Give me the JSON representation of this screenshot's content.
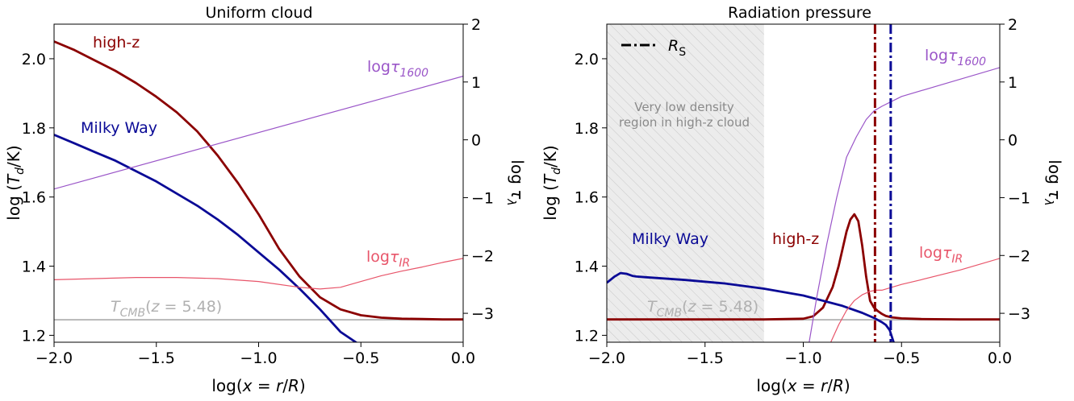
{
  "colors": {
    "high_z": "#8b0000",
    "milky_way": "#0a0a96",
    "tau_1600": "#9a55c8",
    "tau_ir": "#e8556a",
    "cmb": "#b0b0b0",
    "shade_text": "#8a8a8a",
    "legend_line": "#000000"
  },
  "chart_data": [
    {
      "type": "line",
      "title": "Uniform cloud",
      "xlabel": "log(x = r/R)",
      "ylabel_left": "log (T_d/K)",
      "ylabel_right": "log τ_λ",
      "xlim": [
        -2.0,
        0.0
      ],
      "ylim_left": [
        1.18,
        2.1
      ],
      "ylim_right": [
        -3.5,
        2.0
      ],
      "xticks": [
        "−2.0",
        "−1.5",
        "−1.0",
        "−0.5",
        "0.0"
      ],
      "yticks_left": [
        "1.2",
        "1.4",
        "1.6",
        "1.8",
        "2.0"
      ],
      "yticks_right": [
        "−3",
        "−2",
        "−1",
        "0",
        "1",
        "2"
      ],
      "grid": false,
      "cmb_level": 1.245,
      "cmb_label": "T_CMB(z = 5.48)",
      "series": [
        {
          "name": "high-z",
          "axis": "left",
          "color_key": "high_z",
          "x": [
            -2.0,
            -1.9,
            -1.8,
            -1.7,
            -1.6,
            -1.5,
            -1.4,
            -1.3,
            -1.2,
            -1.1,
            -1.0,
            -0.9,
            -0.8,
            -0.7,
            -0.6,
            -0.5,
            -0.4,
            -0.3,
            -0.2,
            -0.1,
            0.0
          ],
          "y": [
            2.05,
            2.025,
            1.995,
            1.965,
            1.93,
            1.89,
            1.845,
            1.79,
            1.72,
            1.64,
            1.55,
            1.45,
            1.37,
            1.31,
            1.275,
            1.258,
            1.251,
            1.248,
            1.247,
            1.246,
            1.246
          ]
        },
        {
          "name": "Milky Way",
          "axis": "left",
          "color_key": "milky_way",
          "x": [
            -2.0,
            -1.9,
            -1.8,
            -1.7,
            -1.6,
            -1.5,
            -1.4,
            -1.3,
            -1.2,
            -1.1,
            -1.0,
            -0.9,
            -0.8,
            -0.7,
            -0.6,
            -0.5
          ],
          "y": [
            1.78,
            1.755,
            1.73,
            1.705,
            1.675,
            1.645,
            1.61,
            1.575,
            1.535,
            1.49,
            1.44,
            1.39,
            1.335,
            1.275,
            1.21,
            1.17
          ]
        },
        {
          "name": "logτ1600",
          "axis": "right",
          "color_key": "tau_1600",
          "x": [
            -2.0,
            0.0
          ],
          "y": [
            -0.85,
            1.1
          ]
        },
        {
          "name": "logτIR",
          "axis": "right",
          "color_key": "tau_ir",
          "x": [
            -2.0,
            -1.8,
            -1.6,
            -1.4,
            -1.2,
            -1.0,
            -0.8,
            -0.7,
            -0.6,
            -0.5,
            -0.4,
            -0.3,
            -0.2,
            -0.1,
            0.0
          ],
          "y": [
            -2.42,
            -2.4,
            -2.38,
            -2.38,
            -2.4,
            -2.45,
            -2.55,
            -2.58,
            -2.55,
            -2.45,
            -2.35,
            -2.27,
            -2.2,
            -2.12,
            -2.05
          ]
        }
      ],
      "labels": {
        "high_z": "high-z",
        "milky_way": "Milky Way",
        "tau_1600": "logτ1600",
        "tau_ir": "logτIR"
      }
    },
    {
      "type": "line",
      "title": "Radiation pressure",
      "xlabel": "log(x = r/R)",
      "ylabel_left": "log (T_d/K)",
      "ylabel_right": "log τ_λ",
      "xlim": [
        -2.0,
        0.0
      ],
      "ylim_left": [
        1.18,
        2.1
      ],
      "ylim_right": [
        -3.5,
        2.0
      ],
      "xticks": [
        "−2.0",
        "−1.5",
        "−1.0",
        "−0.5",
        "0.0"
      ],
      "yticks_left": [
        "1.2",
        "1.4",
        "1.6",
        "1.8",
        "2.0"
      ],
      "yticks_right": [
        "−3",
        "−2",
        "−1",
        "0",
        "1",
        "2"
      ],
      "grid": false,
      "cmb_level": 1.245,
      "cmb_label": "T_CMB(z = 5.48)",
      "shaded_region": {
        "x": [
          -2.0,
          -1.2
        ],
        "label_line1": "Very low density",
        "label_line2": "region in high-z cloud"
      },
      "legend": {
        "label": "R_S",
        "placement": "upper-left"
      },
      "rs_lines": [
        {
          "series": "high-z",
          "x": -0.635,
          "color_key": "high_z"
        },
        {
          "series": "Milky Way",
          "x": -0.555,
          "color_key": "milky_way"
        }
      ],
      "series": [
        {
          "name": "high-z",
          "axis": "left",
          "color_key": "high_z",
          "x": [
            -2.0,
            -1.2,
            -1.0,
            -0.95,
            -0.9,
            -0.85,
            -0.82,
            -0.8,
            -0.78,
            -0.76,
            -0.74,
            -0.72,
            -0.7,
            -0.68,
            -0.66,
            -0.64,
            -0.62,
            -0.6,
            -0.58,
            -0.55,
            -0.5,
            -0.4,
            -0.2,
            0.0
          ],
          "y": [
            1.246,
            1.246,
            1.248,
            1.255,
            1.28,
            1.34,
            1.4,
            1.45,
            1.5,
            1.535,
            1.55,
            1.53,
            1.46,
            1.37,
            1.3,
            1.28,
            1.27,
            1.262,
            1.256,
            1.252,
            1.249,
            1.247,
            1.246,
            1.246
          ]
        },
        {
          "name": "Milky Way",
          "axis": "left",
          "color_key": "milky_way",
          "x": [
            -2.0,
            -1.96,
            -1.93,
            -1.9,
            -1.87,
            -1.85,
            -1.8,
            -1.6,
            -1.4,
            -1.2,
            -1.0,
            -0.8,
            -0.7,
            -0.64,
            -0.6,
            -0.58,
            -0.56,
            -0.54
          ],
          "y": [
            1.352,
            1.37,
            1.38,
            1.378,
            1.372,
            1.37,
            1.368,
            1.36,
            1.35,
            1.335,
            1.315,
            1.285,
            1.265,
            1.25,
            1.238,
            1.23,
            1.215,
            1.18
          ]
        },
        {
          "name": "logτ1600",
          "axis": "right",
          "color_key": "tau_1600",
          "x": [
            -0.97,
            -0.93,
            -0.88,
            -0.83,
            -0.78,
            -0.73,
            -0.68,
            -0.64,
            -0.6,
            -0.5,
            -0.3,
            0.0
          ],
          "y": [
            -3.5,
            -2.7,
            -1.8,
            -1.0,
            -0.3,
            0.05,
            0.35,
            0.5,
            0.58,
            0.75,
            0.95,
            1.25
          ]
        },
        {
          "name": "logτIR",
          "axis": "right",
          "color_key": "tau_ir",
          "x": [
            -0.86,
            -0.82,
            -0.78,
            -0.74,
            -0.7,
            -0.66,
            -0.63,
            -0.6,
            -0.55,
            -0.5,
            -0.4,
            -0.2,
            0.0
          ],
          "y": [
            -3.5,
            -3.2,
            -2.95,
            -2.78,
            -2.68,
            -2.62,
            -2.6,
            -2.6,
            -2.55,
            -2.5,
            -2.42,
            -2.25,
            -2.05
          ]
        }
      ],
      "labels": {
        "high_z": "high-z",
        "milky_way": "Milky Way",
        "tau_1600": "logτ1600",
        "tau_ir": "logτIR"
      }
    }
  ]
}
